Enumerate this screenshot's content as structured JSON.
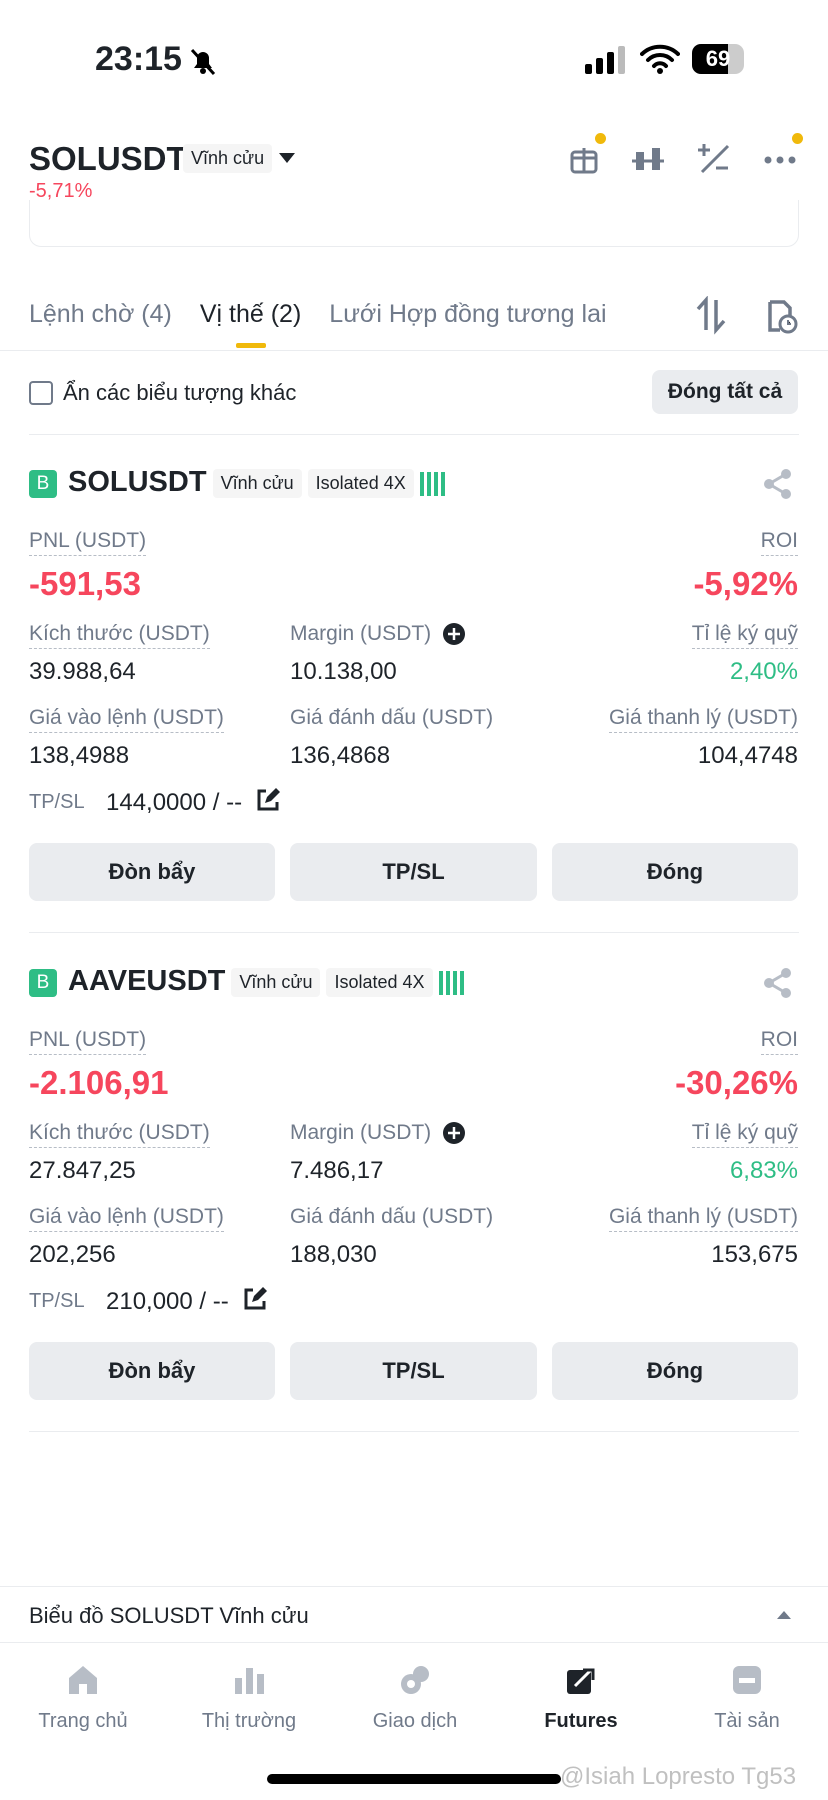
{
  "status": {
    "time": "23:15",
    "battery": "69"
  },
  "header": {
    "symbol": "SOLUSDT",
    "type": "Vĩnh cửu",
    "change": "-5,71%"
  },
  "tabs": {
    "items": [
      "Lệnh chờ (4)",
      "Vị thế (2)",
      "Lưới Hợp đồng tương lai"
    ],
    "active": 1
  },
  "filter": {
    "label": "Ẩn các biểu tượng khác",
    "close_all": "Đóng tất cả"
  },
  "positions": [
    {
      "side": "B",
      "symbol": "SOLUSDT",
      "type": "Vĩnh cửu",
      "margin_mode": "Isolated 4X",
      "pnl_label": "PNL (USDT)",
      "pnl": "-591,53",
      "roi_label": "ROI",
      "roi": "-5,92%",
      "stats": [
        {
          "label": "Kích thước (USDT)",
          "value": "39.988,64"
        },
        {
          "label": "Margin (USDT)",
          "value": "10.138,00"
        },
        {
          "label": "Tỉ lệ ký quỹ",
          "value": "2,40%"
        },
        {
          "label": "Giá vào lệnh (USDT)",
          "value": "138,4988"
        },
        {
          "label": "Giá đánh dấu (USDT)",
          "value": "136,4868"
        },
        {
          "label": "Giá thanh lý (USDT)",
          "value": "104,4748"
        }
      ],
      "tpsl_label": "TP/SL",
      "tpsl": "144,0000 / --",
      "buttons": [
        "Đòn bẩy",
        "TP/SL",
        "Đóng"
      ]
    },
    {
      "side": "B",
      "symbol": "AAVEUSDT",
      "type": "Vĩnh cửu",
      "margin_mode": "Isolated 4X",
      "pnl_label": "PNL (USDT)",
      "pnl": "-2.106,91",
      "roi_label": "ROI",
      "roi": "-30,26%",
      "stats": [
        {
          "label": "Kích thước (USDT)",
          "value": "27.847,25"
        },
        {
          "label": "Margin (USDT)",
          "value": "7.486,17"
        },
        {
          "label": "Tỉ lệ ký quỹ",
          "value": "6,83%"
        },
        {
          "label": "Giá vào lệnh (USDT)",
          "value": "202,256"
        },
        {
          "label": "Giá đánh dấu (USDT)",
          "value": "188,030"
        },
        {
          "label": "Giá thanh lý (USDT)",
          "value": "153,675"
        }
      ],
      "tpsl_label": "TP/SL",
      "tpsl": "210,000 / --",
      "buttons": [
        "Đòn bẩy",
        "TP/SL",
        "Đóng"
      ]
    }
  ],
  "chart_bar": {
    "label": "Biểu đồ SOLUSDT Vĩnh cửu"
  },
  "nav": {
    "items": [
      "Trang chủ",
      "Thị trường",
      "Giao dịch",
      "Futures",
      "Tài sản"
    ],
    "active": 3
  },
  "watermark": "@Isiah Lopresto Tg53"
}
